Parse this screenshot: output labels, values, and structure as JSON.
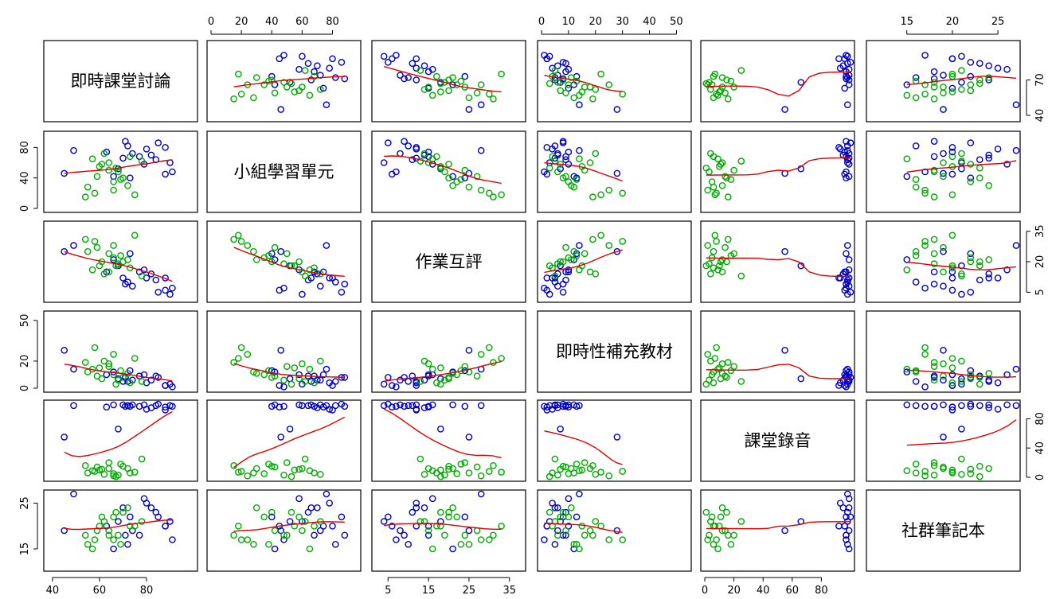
{
  "chart_data": {
    "type": "scatter",
    "kind": "scatterplot-matrix",
    "smoother_color": "#e00000",
    "group_colors": [
      "#0000cc",
      "#00aa00"
    ],
    "variables": [
      {
        "label": "即時課堂討論",
        "range": [
          38,
          100
        ],
        "ticks": [
          40,
          70
        ]
      },
      {
        "label": "小組學習單元",
        "range": [
          0,
          96
        ],
        "ticks": [
          0,
          20,
          40,
          60,
          80
        ]
      },
      {
        "label": "作業互評",
        "range": [
          2,
          38
        ],
        "ticks": [
          5,
          15,
          20,
          25,
          35
        ]
      },
      {
        "label": "即時性補充教材",
        "range": [
          0,
          54
        ],
        "ticks": [
          0,
          10,
          20,
          30,
          40,
          50
        ]
      },
      {
        "label": "課堂錄音",
        "range": [
          0,
          100
        ],
        "ticks": [
          0,
          20,
          40,
          60,
          80
        ]
      },
      {
        "label": "社群筆記本",
        "range": [
          11,
          27
        ],
        "ticks": [
          15,
          20,
          25
        ]
      }
    ],
    "axes": {
      "top": [
        {
          "var": 1,
          "ticks": [
            0,
            20,
            40,
            60,
            80
          ]
        },
        {
          "var": 3,
          "ticks": [
            0,
            10,
            20,
            30,
            40,
            50
          ]
        },
        {
          "var": 5,
          "ticks": [
            15,
            20,
            25
          ]
        }
      ],
      "bottom": [
        {
          "var": 0,
          "ticks": [
            40,
            60,
            80
          ]
        },
        {
          "var": 2,
          "ticks": [
            5,
            15,
            25,
            35
          ]
        },
        {
          "var": 4,
          "ticks": [
            0,
            20,
            40,
            60,
            80
          ]
        }
      ],
      "left": [
        {
          "var": 1,
          "ticks": [
            0,
            40,
            80
          ]
        },
        {
          "var": 3,
          "ticks": [
            0,
            20,
            50
          ]
        },
        {
          "var": 5,
          "ticks": [
            15,
            25
          ]
        }
      ],
      "right": [
        {
          "var": 0,
          "ticks": [
            40,
            70
          ]
        },
        {
          "var": 2,
          "ticks": [
            5,
            20,
            35
          ]
        },
        {
          "var": 4,
          "ticks": [
            0,
            40,
            80
          ]
        }
      ]
    },
    "observations": {
      "columns": [
        "即時課堂討論",
        "小組學習單元",
        "作業互評",
        "即時性補充教材",
        "課堂錄音",
        "社群筆記本",
        "group"
      ],
      "rows": [
        [
          90,
          60,
          4,
          3,
          98,
          21,
          0
        ],
        [
          88,
          45,
          6,
          2,
          96,
          20,
          0
        ],
        [
          82,
          70,
          14,
          6,
          95,
          24,
          0
        ],
        [
          77,
          68,
          15,
          9,
          97,
          18,
          0
        ],
        [
          74,
          72,
          8,
          6,
          99,
          19,
          0
        ],
        [
          80,
          78,
          12,
          4,
          93,
          25,
          0
        ],
        [
          85,
          86,
          5,
          8,
          100,
          22,
          0
        ],
        [
          91,
          48,
          7,
          1,
          97,
          17,
          0
        ],
        [
          72,
          82,
          10,
          5,
          98,
          16,
          0
        ],
        [
          70,
          66,
          12,
          5,
          99,
          24,
          0
        ],
        [
          63,
          74,
          15,
          10,
          96,
          20,
          0
        ],
        [
          71,
          88,
          9,
          8,
          97,
          18,
          0
        ],
        [
          45,
          46,
          25,
          28,
          55,
          19,
          0
        ],
        [
          68,
          52,
          18,
          7,
          66,
          21,
          0
        ],
        [
          79,
          58,
          16,
          10,
          99,
          26,
          0
        ],
        [
          84,
          64,
          11,
          9,
          98,
          23,
          0
        ],
        [
          66,
          42,
          21,
          12,
          99,
          15,
          0
        ],
        [
          49,
          76,
          28,
          14,
          98,
          27,
          0
        ],
        [
          73,
          40,
          24,
          13,
          97,
          22,
          0
        ],
        [
          88,
          80,
          12,
          2,
          92,
          20,
          0
        ],
        [
          60,
          55,
          18,
          15,
          10,
          20,
          1
        ],
        [
          64,
          60,
          15,
          18,
          12,
          19,
          1
        ],
        [
          58,
          20,
          30,
          30,
          8,
          17,
          1
        ],
        [
          66,
          35,
          22,
          10,
          5,
          22,
          1
        ],
        [
          70,
          40,
          20,
          8,
          15,
          23,
          1
        ],
        [
          55,
          28,
          25,
          12,
          6,
          16,
          1
        ],
        [
          62,
          72,
          14,
          20,
          4,
          21,
          1
        ],
        [
          68,
          48,
          19,
          6,
          3,
          18,
          1
        ],
        [
          72,
          30,
          21,
          11,
          12,
          24,
          1
        ],
        [
          57,
          65,
          16,
          14,
          9,
          15,
          1
        ],
        [
          75,
          18,
          33,
          22,
          7,
          20,
          1
        ],
        [
          64,
          50,
          24,
          16,
          20,
          18,
          1
        ],
        [
          59,
          42,
          27,
          9,
          14,
          19,
          1
        ],
        [
          78,
          62,
          13,
          5,
          25,
          21,
          1
        ],
        [
          66,
          24,
          28,
          25,
          2,
          17,
          1
        ],
        [
          61,
          58,
          20,
          7,
          11,
          22,
          1
        ],
        [
          69,
          38,
          23,
          13,
          18,
          16,
          1
        ],
        [
          73,
          68,
          17,
          4,
          6,
          20,
          1
        ],
        [
          54,
          15,
          31,
          19,
          16,
          18,
          1
        ],
        [
          67,
          53,
          18,
          3,
          1,
          23,
          1
        ]
      ]
    }
  }
}
